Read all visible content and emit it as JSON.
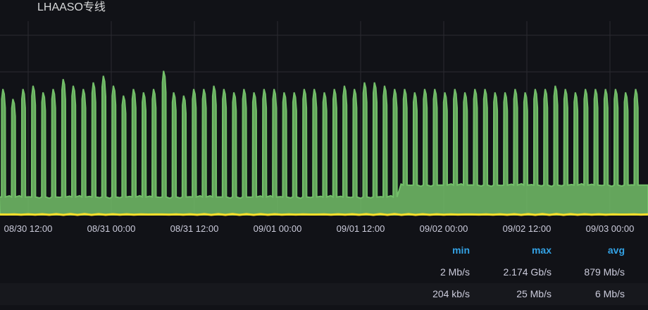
{
  "panel": {
    "title": "LHAASO专线"
  },
  "chart_data": {
    "type": "area",
    "title": "LHAASO专线",
    "xlabel": "",
    "ylabel": "",
    "x_tick_labels": [
      "08/30 12:00",
      "08/31 00:00",
      "08/31 12:00",
      "09/01 00:00",
      "09/01 12:00",
      "09/02 00:00",
      "09/02 12:00",
      "09/03 00:00"
    ],
    "x_range": [
      "08/30 08:00",
      "09/03 09:30"
    ],
    "y_unit": "Gb/s",
    "y_range": [
      0,
      2.3
    ],
    "grid": true,
    "series": [
      {
        "color": "#73bf69",
        "pattern": "periodic spikes",
        "spike_period_hours": 1.45,
        "baseline_before_0901_17h": 0.27,
        "baseline_after_0901_17h": 0.45,
        "peaks": [
          1.9,
          1.75,
          1.9,
          1.95,
          1.85,
          1.9,
          2.05,
          1.95,
          1.9,
          2.0,
          2.1,
          1.95,
          1.8,
          1.9,
          1.85,
          1.9,
          2.174,
          1.85,
          1.8,
          1.9,
          1.9,
          1.95,
          1.9,
          1.85,
          1.9,
          1.85,
          1.9,
          1.9,
          1.85,
          1.85,
          1.9,
          1.9,
          1.85,
          1.9,
          1.95,
          1.9,
          2.0,
          2.0,
          1.95,
          1.9,
          1.9,
          1.85,
          1.9,
          1.9,
          1.85,
          1.9,
          1.85,
          1.9,
          1.9,
          1.85,
          1.85,
          1.9,
          1.85,
          1.9,
          1.9,
          1.95,
          1.9,
          1.85,
          1.9,
          1.9,
          1.9,
          1.9,
          1.85,
          1.9
        ]
      },
      {
        "color": "#fade2a",
        "pattern": "flat",
        "level": 0.006
      }
    ]
  },
  "legend": {
    "headers": {
      "min": "min",
      "max": "max",
      "avg": "avg"
    },
    "rows": [
      {
        "min": "2 Mb/s",
        "max": "2.174 Gb/s",
        "avg": "879 Mb/s"
      },
      {
        "min": "204 kb/s",
        "max": "25 Mb/s",
        "avg": "6 Mb/s"
      }
    ]
  }
}
